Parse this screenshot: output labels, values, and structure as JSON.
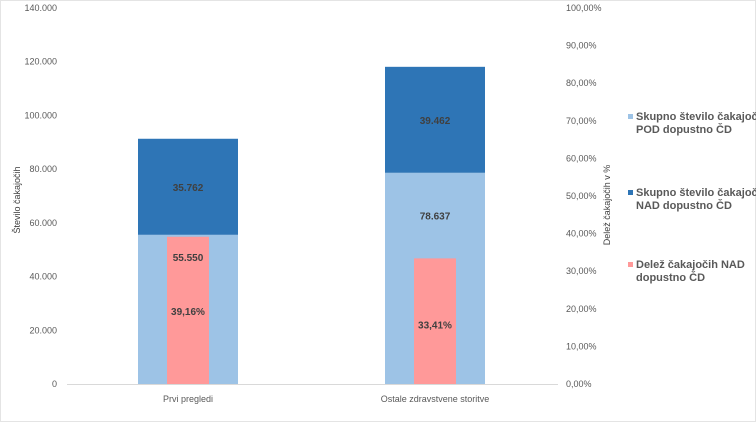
{
  "chart_data": {
    "type": "bar",
    "categories": [
      "Prvi pregledi",
      "Ostale zdravstvene storitve"
    ],
    "series": [
      {
        "name": "Skupno število čakajočih POD dopustno ČD",
        "axis": "left",
        "stack": "count",
        "color": "#9DC3E6",
        "values": [
          55550,
          78637
        ],
        "labels": [
          "55.550",
          "78.637"
        ]
      },
      {
        "name": "Skupno število čakajočih NAD dopustno ČD",
        "axis": "left",
        "stack": "count",
        "color": "#2E75B6",
        "values": [
          35762,
          39462
        ],
        "labels": [
          "35.762",
          "39.462"
        ]
      },
      {
        "name": "Delež čakajočih NAD dopustno ČD",
        "axis": "right",
        "color": "#FF9999",
        "values": [
          39.16,
          33.41
        ],
        "labels": [
          "39,16%",
          "33,41%"
        ]
      }
    ],
    "ylabel": "Število čakajočih",
    "ylabel_right": "Delež čakajočih v %",
    "ylim": [
      0,
      140000
    ],
    "ylim_right": [
      0,
      100
    ],
    "yticks": [
      "0",
      "20.000",
      "40.000",
      "60.000",
      "80.000",
      "100.000",
      "120.000",
      "140.000"
    ],
    "yticks_right": [
      "0,00%",
      "10,00%",
      "20,00%",
      "30,00%",
      "40,00%",
      "50,00%",
      "60,00%",
      "70,00%",
      "80,00%",
      "90,00%",
      "100,00%"
    ],
    "legend_position": "right",
    "grid": false
  }
}
